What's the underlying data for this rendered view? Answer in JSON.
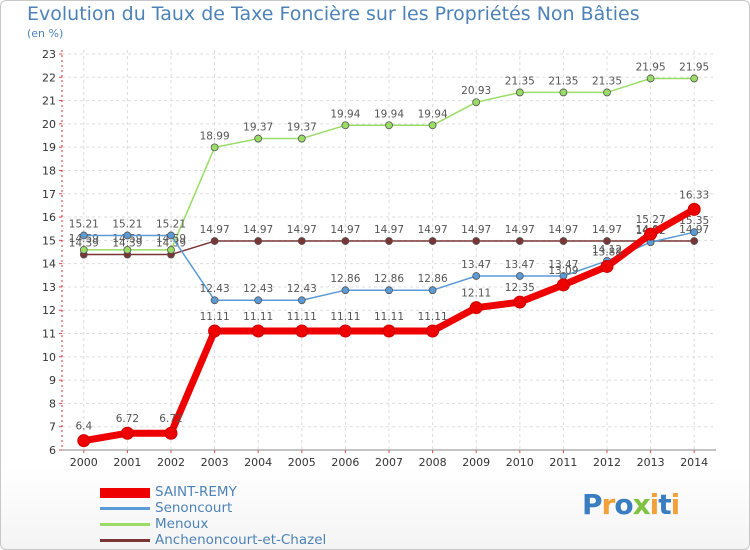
{
  "chart_data": {
    "type": "line",
    "title": "Evolution du Taux de Taxe Foncière sur les Propriétés Non Bâties",
    "ylabel": "(en %)",
    "xlabel": "",
    "ylim": [
      6,
      23
    ],
    "yticks": [
      6,
      7,
      8,
      9,
      10,
      11,
      12,
      13,
      14,
      15,
      16,
      17,
      18,
      19,
      20,
      21,
      22,
      23
    ],
    "categories": [
      "2000",
      "2001",
      "2002",
      "2003",
      "2004",
      "2005",
      "2006",
      "2007",
      "2008",
      "2009",
      "2010",
      "2011",
      "2012",
      "2013",
      "2014"
    ],
    "series": [
      {
        "name": "SAINT-REMY",
        "color": "#ee0000",
        "values": [
          6.4,
          6.72,
          6.72,
          11.11,
          11.11,
          11.11,
          11.11,
          11.11,
          11.11,
          12.11,
          12.35,
          13.09,
          13.88,
          15.27,
          16.33
        ],
        "labels": [
          "6.4",
          "6.72",
          "6.72",
          "11.11",
          "11.11",
          "11.11",
          "11.11",
          "11.11",
          "11.11",
          "12.11",
          "12.35",
          "13.09",
          "13.88",
          "15.27",
          "16.33"
        ]
      },
      {
        "name": "Senoncourt",
        "color": "#5b9bd5",
        "values": [
          15.21,
          15.21,
          15.21,
          12.43,
          12.43,
          12.43,
          12.86,
          12.86,
          12.86,
          13.47,
          13.47,
          13.47,
          14.12,
          14.92,
          15.35
        ],
        "labels": [
          "15.21",
          "15.21",
          "15.21",
          "12.43",
          "12.43",
          "12.43",
          "12.86",
          "12.86",
          "12.86",
          "13.47",
          "13.47",
          "13.47",
          "14.12",
          "14.92",
          "15.35"
        ]
      },
      {
        "name": "Menoux",
        "color": "#99dd66",
        "values": [
          14.59,
          14.59,
          14.59,
          18.99,
          19.37,
          19.37,
          19.94,
          19.94,
          19.94,
          20.93,
          21.35,
          21.35,
          21.35,
          21.95,
          21.95
        ],
        "labels": [
          "14.59",
          "14.59",
          "14.59",
          "18.99",
          "19.37",
          "19.37",
          "19.94",
          "19.94",
          "19.94",
          "20.93",
          "21.35",
          "21.35",
          "21.35",
          "21.95",
          "21.95"
        ]
      },
      {
        "name": "Anchenoncourt-et-Chazel",
        "color": "#7b3535",
        "values": [
          14.39,
          14.39,
          14.39,
          14.97,
          14.97,
          14.97,
          14.97,
          14.97,
          14.97,
          14.97,
          14.97,
          14.97,
          14.97,
          14.97,
          14.97
        ],
        "labels": [
          "14.39",
          "14.39",
          "14.39",
          "14.97",
          "14.97",
          "14.97",
          "14.97",
          "14.97",
          "14.97",
          "14.97",
          "14.97",
          "14.97",
          "14.97",
          "14.97",
          "14.97"
        ]
      }
    ]
  },
  "logo": {
    "text": "Proxiti"
  }
}
